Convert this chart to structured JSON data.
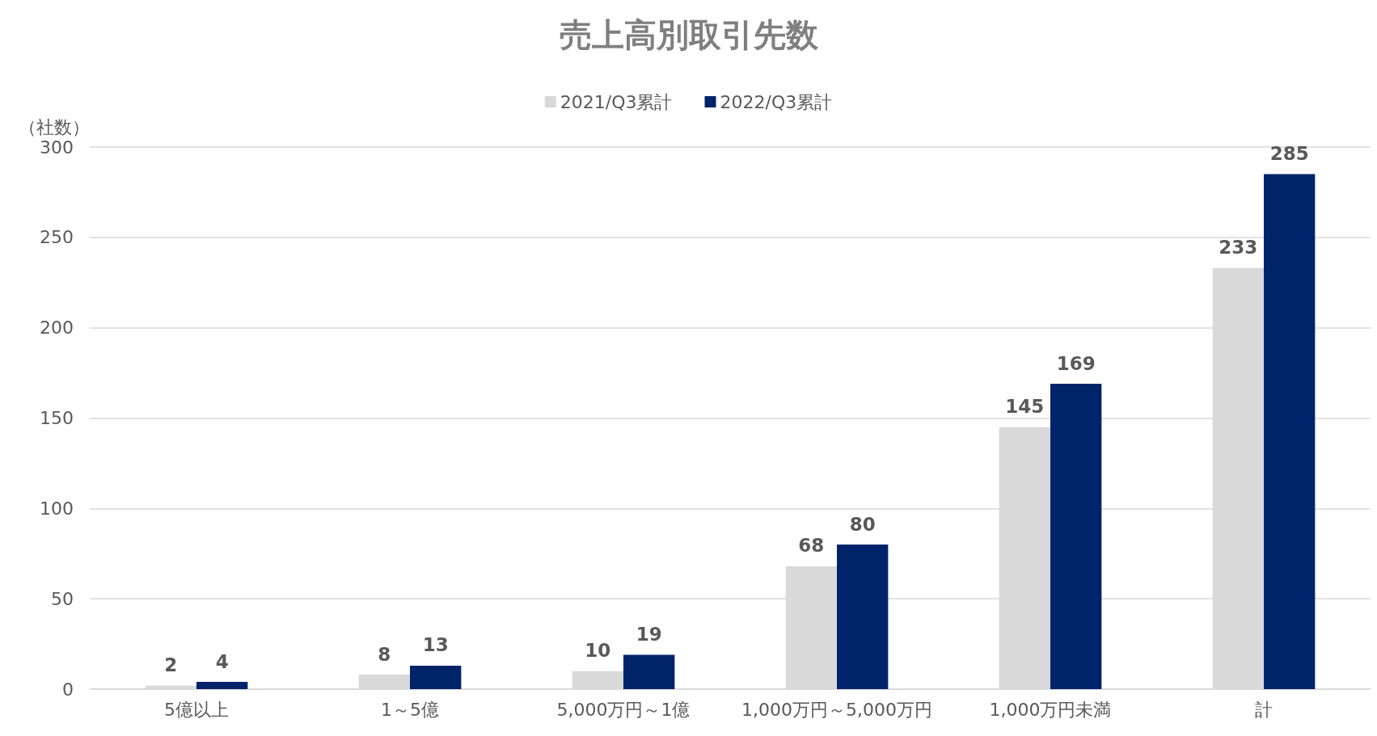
{
  "chart_data": {
    "type": "bar",
    "title": "売上高別取引先数",
    "ylabel": "（社数）",
    "categories": [
      "5億以上",
      "1～5億",
      "5,000万円～1億",
      "1,000万円～5,000万円",
      "1,000万円未満",
      "計"
    ],
    "series": [
      {
        "name": "2021/Q3累計",
        "color": "#d9d9d9",
        "values": [
          2,
          8,
          10,
          68,
          145,
          233
        ]
      },
      {
        "name": "2022/Q3累計",
        "color": "#002469",
        "values": [
          4,
          13,
          19,
          80,
          169,
          285
        ]
      }
    ],
    "ylim": [
      0,
      300
    ],
    "yticks": [
      0,
      50,
      100,
      150,
      200,
      250,
      300
    ],
    "grid": "y",
    "legend": "top",
    "data_labels": true
  }
}
